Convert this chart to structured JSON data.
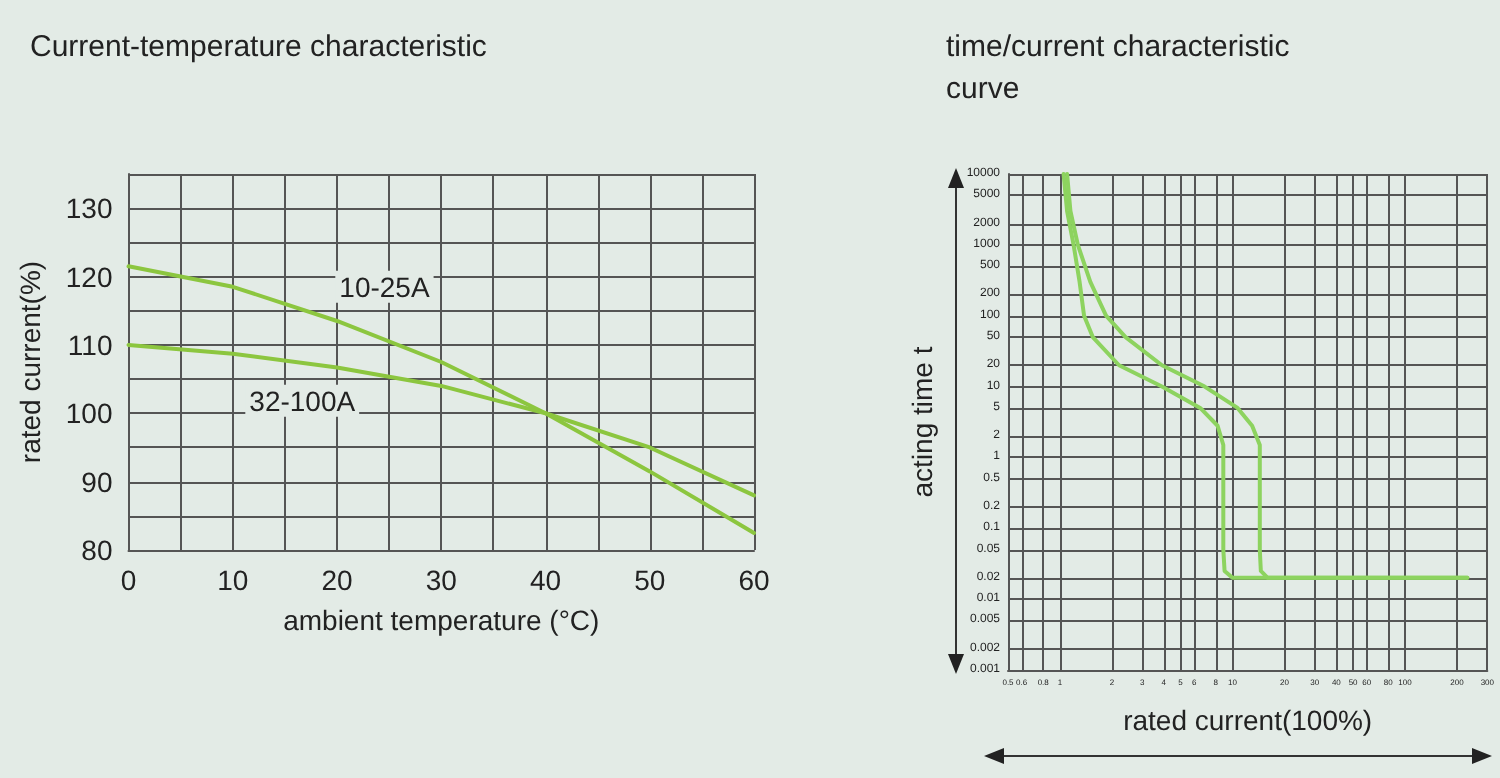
{
  "chart_data": [
    {
      "type": "line",
      "title": "Current-temperature characteristic",
      "xlabel": "ambient temperature (°C)",
      "ylabel": "rated current(%)",
      "x": [
        0,
        10,
        20,
        30,
        40,
        50,
        60
      ],
      "series": [
        {
          "color": "#8cc63f",
          "values": [
            121.5,
            118.5,
            113.5,
            107.5,
            100,
            91.5,
            82.5
          ]
        },
        {
          "color": "#8cc63f",
          "values": [
            110,
            108.7,
            106.7,
            104,
            100,
            95,
            88
          ]
        }
      ],
      "annotations": [
        {
          "text": "10-25A",
          "x": 16,
          "y": 115
        },
        {
          "text": "32-100A",
          "x": 16,
          "y": 106.5
        }
      ],
      "xlim": [
        0,
        60
      ],
      "xticks": [
        0,
        {
          "value": 5,
          "label": null
        },
        10,
        {
          "value": 15,
          "label": null
        },
        20,
        {
          "value": 25,
          "label": null
        },
        30,
        {
          "value": 35,
          "label": null
        },
        40,
        {
          "value": 45,
          "label": null
        },
        50,
        {
          "value": 55,
          "label": null
        },
        60
      ],
      "ylim": [
        80,
        135
      ],
      "yticks": [
        80,
        {
          "value": 85,
          "label": null
        },
        90,
        {
          "value": 95,
          "label": null
        },
        100,
        {
          "value": 105,
          "label": null
        },
        110,
        {
          "value": 115,
          "label": null
        },
        120,
        {
          "value": 125,
          "label": null
        },
        130,
        {
          "value": 135,
          "label": null
        }
      ],
      "grid": true,
      "marker": "none",
      "line_style": "solid"
    },
    {
      "type": "line",
      "title": "time/current characteristic curve",
      "xlabel": "rated current(100%)",
      "ylabel": "acting time t",
      "series": [
        {
          "color": "#8dd35f",
          "x": [
            1.05,
            1.1,
            1.2,
            1.3,
            1.38,
            1.55,
            2.2,
            3.9,
            6.5,
            8.2,
            8.85,
            8.85,
            9,
            10,
            230
          ],
          "values": [
            10000,
            3000,
            1000,
            300,
            100,
            50,
            20,
            10,
            5,
            2.8,
            1.5,
            0.05,
            0.025,
            0.02,
            0.02
          ]
        },
        {
          "color": "#8dd35f",
          "x": [
            1.1,
            1.15,
            1.27,
            1.5,
            1.85,
            2.4,
            3.9,
            6.9,
            10.7,
            13,
            14.4,
            14.4,
            14.6,
            16,
            230
          ],
          "values": [
            10000,
            3000,
            1000,
            300,
            100,
            50,
            20,
            10,
            5,
            2.8,
            1.5,
            0.05,
            0.025,
            0.02,
            0.02
          ]
        }
      ],
      "log": "xy",
      "xlim": [
        0.5,
        300
      ],
      "xticks": [
        0.5,
        0.6,
        0.8,
        1,
        2,
        3,
        4,
        5,
        6,
        8,
        10,
        20,
        30,
        40,
        50,
        60,
        80,
        100,
        200,
        300
      ],
      "ylim": [
        0.001,
        10000
      ],
      "yticks": [
        0.001,
        0.002,
        0.005,
        0.01,
        0.02,
        0.05,
        0.1,
        0.2,
        0.5,
        1,
        2,
        5,
        10,
        20,
        50,
        100,
        200,
        500,
        1000,
        2000,
        5000,
        10000
      ],
      "grid": true,
      "marker": "none",
      "line_style": "solid"
    }
  ]
}
